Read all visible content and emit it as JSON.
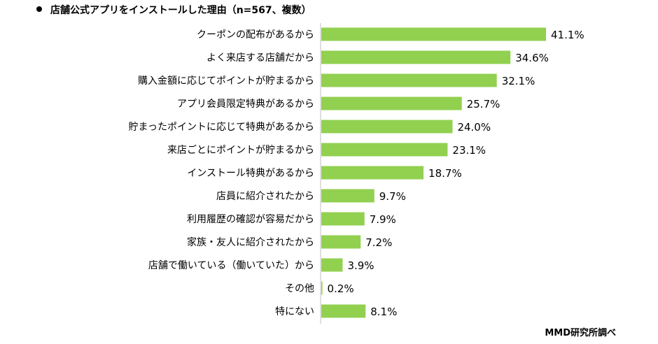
{
  "title": "店舗公式アプリをインストールした理由（n=567、複数）",
  "source": "MMD研究所調べ",
  "bar_color": "#92d050",
  "axis_color": "#bfbfbf",
  "chart_data": {
    "type": "bar",
    "orientation": "horizontal",
    "title": "店舗公式アプリをインストールした理由（n=567、複数）",
    "unit": "%",
    "xlim": [
      0,
      41.1
    ],
    "grid": false,
    "categories": [
      "クーポンの配布があるから",
      "よく来店する店舗だから",
      "購入金額に応じてポイントが貯まるから",
      "アプリ会員限定特典があるから",
      "貯まったポイントに応じて特典があるから",
      "来店ごとにポイントが貯まるから",
      "インストール特典があるから",
      "店員に紹介されたから",
      "利用履歴の確認が容易だから",
      "家族・友人に紹介されたから",
      "店舗で働いている（働いていた）から",
      "その他",
      "特にない"
    ],
    "values": [
      41.1,
      34.6,
      32.1,
      25.7,
      24.0,
      23.1,
      18.7,
      9.7,
      7.9,
      7.2,
      3.9,
      0.2,
      8.1
    ],
    "value_labels": [
      "41.1%",
      "34.6%",
      "32.1%",
      "25.7%",
      "24.0%",
      "23.1%",
      "18.7%",
      "9.7%",
      "7.9%",
      "7.2%",
      "3.9%",
      "0.2%",
      "8.1%"
    ]
  }
}
